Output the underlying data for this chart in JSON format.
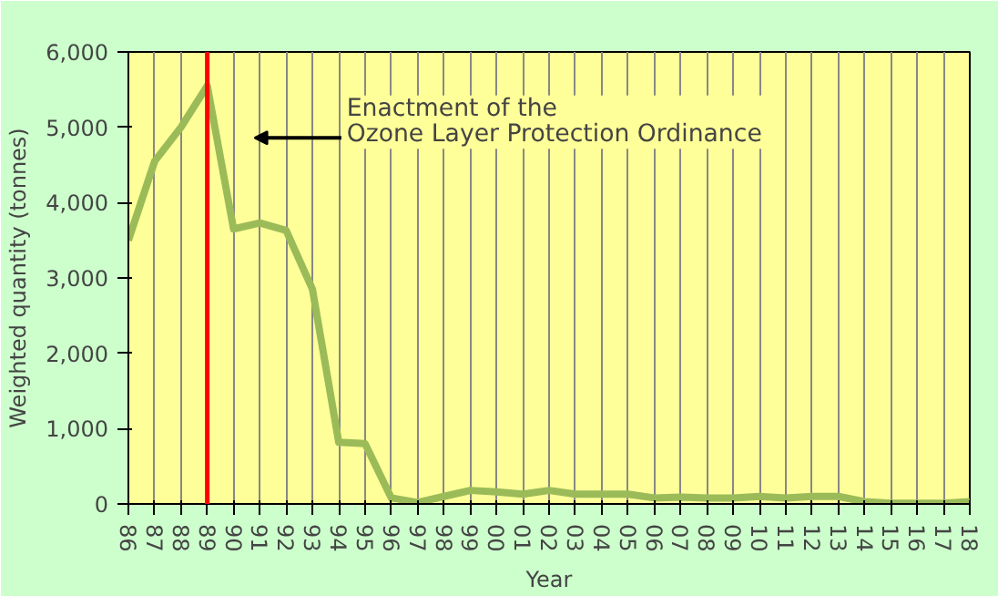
{
  "chart_data": {
    "type": "line",
    "xlabel": "Year",
    "ylabel": "Weighted quantity (tonnes)",
    "categories": [
      "86",
      "87",
      "88",
      "89",
      "90",
      "91",
      "92",
      "93",
      "94",
      "95",
      "96",
      "97",
      "98",
      "99",
      "00",
      "01",
      "02",
      "03",
      "04",
      "05",
      "06",
      "07",
      "08",
      "09",
      "10",
      "11",
      "12",
      "13",
      "14",
      "15",
      "16",
      "17",
      "18"
    ],
    "series": [
      {
        "color": "#9bbb59",
        "values": [
          3500,
          4550,
          5000,
          5550,
          3650,
          3730,
          3630,
          2850,
          820,
          800,
          80,
          20,
          100,
          180,
          160,
          130,
          180,
          130,
          130,
          130,
          80,
          90,
          80,
          80,
          100,
          80,
          100,
          100,
          30,
          10,
          10,
          10,
          30
        ]
      }
    ],
    "ylim": [
      0,
      6000
    ],
    "yticks": [
      0,
      {
        "value": 1000,
        "label": "1,000"
      },
      {
        "value": 2000,
        "label": "2,000"
      },
      {
        "value": 3000,
        "label": "3,000"
      },
      {
        "value": 4000,
        "label": "4,000"
      },
      {
        "value": 5000,
        "label": "5,000"
      },
      {
        "value": 6000,
        "label": "6,000"
      }
    ],
    "ref_lines": [
      {
        "axis": "x",
        "value": "89",
        "color": "#ff0000"
      }
    ],
    "annotations": [
      "Enactment of the\nOzone Layer Protection Ordinance"
    ],
    "grid": "x",
    "marker": "none",
    "line_style": "solid"
  }
}
